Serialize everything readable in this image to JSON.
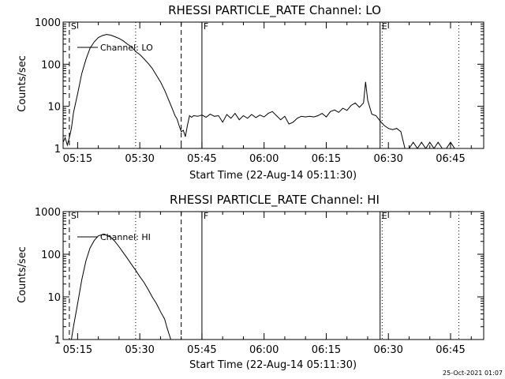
{
  "footer": {
    "timestamp": "25-Oct-2021 01:07"
  },
  "chart_data": [
    {
      "type": "line",
      "title": "RHESSI PARTICLE_RATE Channel: LO",
      "xlabel": "Start Time (22-Aug-14 05:11:30)",
      "ylabel": "Counts/sec",
      "y_scale": "log",
      "ylim": [
        1,
        1000
      ],
      "xlim": [
        "05:11:30",
        "06:53:00"
      ],
      "y_ticks": [
        "1",
        "10",
        "100",
        "1000"
      ],
      "x_ticks": [
        "05:15",
        "05:30",
        "05:45",
        "06:00",
        "06:15",
        "06:30",
        "06:45"
      ],
      "legend": {
        "position": "top-left",
        "label": "Channel: LO"
      },
      "markers": [
        {
          "time": "05:13",
          "style": "dashed",
          "label": "S"
        },
        {
          "time": "05:29",
          "style": "dotted",
          "label": ""
        },
        {
          "time": "05:40",
          "style": "dashed",
          "label": ""
        },
        {
          "time": "05:45",
          "style": "solid",
          "label": "F"
        },
        {
          "time": "06:28",
          "style": "solid",
          "label": "E"
        },
        {
          "time": "06:28.5",
          "style": "dotted",
          "label": ""
        },
        {
          "time": "06:47",
          "style": "dotted",
          "label": ""
        }
      ],
      "series": [
        {
          "name": "Channel: LO",
          "points": [
            [
              "05:11:30",
              1.4
            ],
            [
              "05:12:00",
              1.8
            ],
            [
              "05:12:30",
              1.2
            ],
            [
              "05:13:00",
              1.8
            ],
            [
              "05:13:30",
              3
            ],
            [
              "05:14:00",
              7
            ],
            [
              "05:15:00",
              20
            ],
            [
              "05:16:00",
              60
            ],
            [
              "05:17:00",
              130
            ],
            [
              "05:18:00",
              240
            ],
            [
              "05:19:00",
              340
            ],
            [
              "05:20:00",
              430
            ],
            [
              "05:21:00",
              480
            ],
            [
              "05:22:00",
              510
            ],
            [
              "05:23:00",
              490
            ],
            [
              "05:24:00",
              450
            ],
            [
              "05:25:00",
              410
            ],
            [
              "05:26:00",
              360
            ],
            [
              "05:27:00",
              300
            ],
            [
              "05:28:00",
              260
            ],
            [
              "05:29:00",
              200
            ],
            [
              "05:30:00",
              170
            ],
            [
              "05:31:00",
              135
            ],
            [
              "05:32:00",
              105
            ],
            [
              "05:33:00",
              80
            ],
            [
              "05:34:00",
              55
            ],
            [
              "05:35:00",
              38
            ],
            [
              "05:36:00",
              24
            ],
            [
              "05:37:00",
              14
            ],
            [
              "05:38:00",
              8
            ],
            [
              "05:38:30",
              6
            ],
            [
              "05:39:00",
              5
            ],
            [
              "05:39:30",
              3.5
            ],
            [
              "05:40:00",
              2.5
            ],
            [
              "05:40:30",
              2.7
            ],
            [
              "05:41:00",
              1.9
            ],
            [
              "05:41:30",
              3.5
            ],
            [
              "05:42:00",
              6
            ],
            [
              "05:42:30",
              5.5
            ],
            [
              "05:43:00",
              6
            ],
            [
              "05:44:00",
              5.8
            ],
            [
              "05:45:00",
              6.2
            ],
            [
              "05:46:00",
              5.5
            ],
            [
              "05:47:00",
              6.5
            ],
            [
              "05:48:00",
              5.8
            ],
            [
              "05:49:00",
              6
            ],
            [
              "05:50:00",
              4.2
            ],
            [
              "05:51:00",
              6.4
            ],
            [
              "05:52:00",
              5.2
            ],
            [
              "05:53:00",
              6.8
            ],
            [
              "05:54:00",
              4.8
            ],
            [
              "05:55:00",
              6
            ],
            [
              "05:56:00",
              5.2
            ],
            [
              "05:57:00",
              6.4
            ],
            [
              "05:58:00",
              5.4
            ],
            [
              "05:59:00",
              6.2
            ],
            [
              "06:00:00",
              5.6
            ],
            [
              "06:01:00",
              6.8
            ],
            [
              "06:02:00",
              7.5
            ],
            [
              "06:03:00",
              6
            ],
            [
              "06:04:00",
              4.8
            ],
            [
              "06:05:00",
              5.8
            ],
            [
              "06:06:00",
              3.8
            ],
            [
              "06:07:00",
              4.2
            ],
            [
              "06:08:00",
              5.2
            ],
            [
              "06:09:00",
              5.8
            ],
            [
              "06:10:00",
              5.6
            ],
            [
              "06:11:00",
              5.8
            ],
            [
              "06:12:00",
              5.6
            ],
            [
              "06:13:00",
              6
            ],
            [
              "06:14:00",
              6.8
            ],
            [
              "06:15:00",
              5.6
            ],
            [
              "06:16:00",
              7.5
            ],
            [
              "06:17:00",
              8.2
            ],
            [
              "06:18:00",
              7.2
            ],
            [
              "06:19:00",
              9
            ],
            [
              "06:20:00",
              8
            ],
            [
              "06:21:00",
              10.5
            ],
            [
              "06:22:00",
              12
            ],
            [
              "06:23:00",
              9.5
            ],
            [
              "06:24:00",
              12
            ],
            [
              "06:24:30",
              38
            ],
            [
              "06:25:00",
              14
            ],
            [
              "06:26:00",
              6.5
            ],
            [
              "06:27:00",
              6
            ],
            [
              "06:28:00",
              4.5
            ],
            [
              "06:29:00",
              3.5
            ],
            [
              "06:30:00",
              3
            ],
            [
              "06:31:00",
              2.8
            ],
            [
              "06:32:00",
              3
            ],
            [
              "06:33:00",
              2.5
            ],
            [
              "06:34:00",
              1
            ],
            [
              "06:35:00",
              1
            ],
            [
              "06:36:00",
              1.4
            ],
            [
              "06:37:00",
              1
            ],
            [
              "06:38:00",
              1.4
            ],
            [
              "06:39:00",
              1
            ],
            [
              "06:40:00",
              1.4
            ],
            [
              "06:41:00",
              1
            ],
            [
              "06:42:00",
              1.4
            ],
            [
              "06:43:00",
              1
            ],
            [
              "06:44:00",
              1
            ],
            [
              "06:45:00",
              1.4
            ],
            [
              "06:46:00",
              1
            ]
          ]
        }
      ]
    },
    {
      "type": "line",
      "title": "RHESSI PARTICLE_RATE Channel: HI",
      "xlabel": "Start Time (22-Aug-14 05:11:30)",
      "ylabel": "Counts/sec",
      "y_scale": "log",
      "ylim": [
        1,
        1000
      ],
      "xlim": [
        "05:11:30",
        "06:53:00"
      ],
      "y_ticks": [
        "1",
        "10",
        "100",
        "1000"
      ],
      "x_ticks": [
        "05:15",
        "05:30",
        "05:45",
        "06:00",
        "06:15",
        "06:30",
        "06:45"
      ],
      "legend": {
        "position": "top-left",
        "label": "Channel: HI"
      },
      "markers": [
        {
          "time": "05:13",
          "style": "dashed",
          "label": "S"
        },
        {
          "time": "05:29",
          "style": "dotted",
          "label": ""
        },
        {
          "time": "05:40",
          "style": "dashed",
          "label": ""
        },
        {
          "time": "05:45",
          "style": "solid",
          "label": "F"
        },
        {
          "time": "06:28",
          "style": "solid",
          "label": "E"
        },
        {
          "time": "06:28.5",
          "style": "dotted",
          "label": ""
        },
        {
          "time": "06:47",
          "style": "dotted",
          "label": ""
        }
      ],
      "series": [
        {
          "name": "Channel: HI",
          "points": [
            [
              "05:13:30",
              1
            ],
            [
              "05:14:00",
              2
            ],
            [
              "05:15:00",
              7
            ],
            [
              "05:16:00",
              25
            ],
            [
              "05:17:00",
              70
            ],
            [
              "05:18:00",
              140
            ],
            [
              "05:19:00",
              210
            ],
            [
              "05:20:00",
              270
            ],
            [
              "05:21:00",
              290
            ],
            [
              "05:22:00",
              280
            ],
            [
              "05:23:00",
              250
            ],
            [
              "05:24:00",
              200
            ],
            [
              "05:25:00",
              150
            ],
            [
              "05:26:00",
              110
            ],
            [
              "05:27:00",
              80
            ],
            [
              "05:28:00",
              58
            ],
            [
              "05:29:00",
              42
            ],
            [
              "05:30:00",
              30
            ],
            [
              "05:31:00",
              22
            ],
            [
              "05:32:00",
              15
            ],
            [
              "05:33:00",
              10
            ],
            [
              "05:34:00",
              7
            ],
            [
              "05:35:00",
              4.5
            ],
            [
              "05:36:00",
              3
            ],
            [
              "05:36:30",
              2
            ],
            [
              "05:37:00",
              1.4
            ],
            [
              "05:37:30",
              1
            ]
          ]
        }
      ]
    }
  ]
}
